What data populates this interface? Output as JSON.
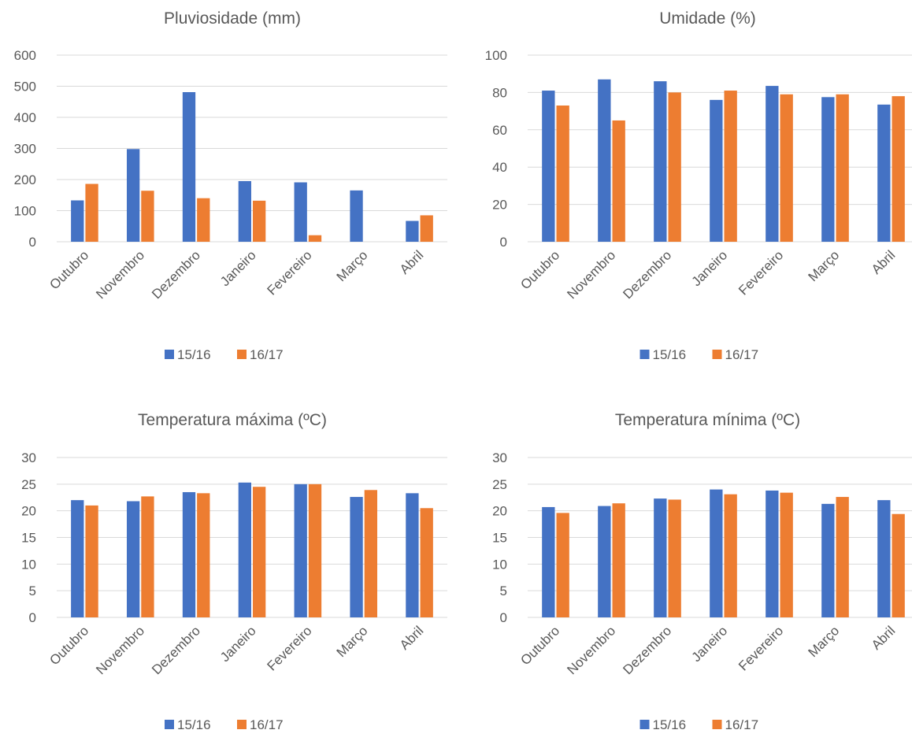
{
  "colors": {
    "s1": "#4472C4",
    "s2": "#ED7D31",
    "grid": "#D9D9D9",
    "text": "#595959"
  },
  "chart_data": [
    {
      "type": "bar",
      "title": "Pluviosidade (mm)",
      "categories": [
        "Outubro",
        "Novembro",
        "Dezembro",
        "Janeiro",
        "Fevereiro",
        "Março",
        "Abril"
      ],
      "series": [
        {
          "name": "15/16",
          "values": [
            133,
            298,
            481,
            195,
            191,
            165,
            67
          ]
        },
        {
          "name": "16/17",
          "values": [
            186,
            164,
            140,
            132,
            21,
            0,
            85
          ]
        }
      ],
      "ylim": [
        0,
        600
      ],
      "yticks": [
        0,
        100,
        200,
        300,
        400,
        500,
        600
      ],
      "grid": true,
      "legend": "bottom"
    },
    {
      "type": "bar",
      "title": "Umidade (%)",
      "categories": [
        "Outubro",
        "Novembro",
        "Dezembro",
        "Janeiro",
        "Fevereiro",
        "Março",
        "Abril"
      ],
      "series": [
        {
          "name": "15/16",
          "values": [
            81,
            87,
            86,
            76,
            83.5,
            77.5,
            73.5
          ]
        },
        {
          "name": "16/17",
          "values": [
            73,
            65,
            80,
            81,
            79,
            79,
            78
          ]
        }
      ],
      "ylim": [
        0,
        100
      ],
      "yticks": [
        0,
        20,
        40,
        60,
        80,
        100
      ],
      "grid": true,
      "legend": "bottom"
    },
    {
      "type": "bar",
      "title": "Temperatura máxima (ºC)",
      "categories": [
        "Outubro",
        "Novembro",
        "Dezembro",
        "Janeiro",
        "Fevereiro",
        "Março",
        "Abril"
      ],
      "series": [
        {
          "name": "15/16",
          "values": [
            22,
            21.8,
            23.5,
            25.3,
            25,
            22.6,
            23.3
          ]
        },
        {
          "name": "16/17",
          "values": [
            21,
            22.7,
            23.3,
            24.5,
            25,
            23.9,
            20.5
          ]
        }
      ],
      "ylim": [
        0,
        30
      ],
      "yticks": [
        0,
        5,
        10,
        15,
        20,
        25,
        30
      ],
      "grid": true,
      "legend": "bottom"
    },
    {
      "type": "bar",
      "title": "Temperatura mínima (ºC)",
      "categories": [
        "Outubro",
        "Novembro",
        "Dezembro",
        "Janeiro",
        "Fevereiro",
        "Março",
        "Abril"
      ],
      "series": [
        {
          "name": "15/16",
          "values": [
            20.7,
            20.9,
            22.3,
            24,
            23.8,
            21.3,
            22
          ]
        },
        {
          "name": "16/17",
          "values": [
            19.6,
            21.4,
            22.1,
            23.1,
            23.4,
            22.6,
            19.4
          ]
        }
      ],
      "ylim": [
        0,
        30
      ],
      "yticks": [
        0,
        5,
        10,
        15,
        20,
        25,
        30
      ],
      "grid": true,
      "legend": "bottom"
    }
  ]
}
